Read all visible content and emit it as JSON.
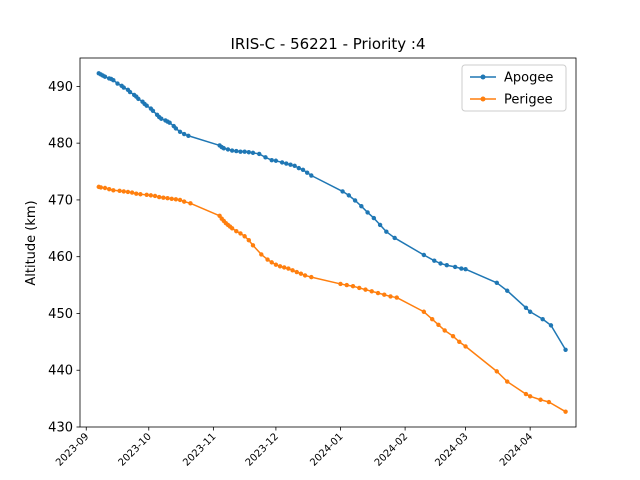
{
  "chart_data": {
    "type": "line",
    "title": "IRIS-C - 56221 - Priority :4",
    "xlabel": "",
    "ylabel": "Altitude (km)",
    "xlim": [
      "2023-08-29",
      "2024-04-23"
    ],
    "ylim": [
      430,
      495
    ],
    "y_ticks": [
      430,
      440,
      450,
      460,
      470,
      480,
      490
    ],
    "x_ticks": [
      "2023-09-01",
      "2023-10-01",
      "2023-11-01",
      "2023-12-01",
      "2024-01-01",
      "2024-02-01",
      "2024-03-01",
      "2024-04-01"
    ],
    "x_tick_labels": [
      "2023-09",
      "2023-10",
      "2023-11",
      "2023-12",
      "2024-01",
      "2024-02",
      "2024-03",
      "2024-04"
    ],
    "grid": false,
    "legend_position": "top-right",
    "series": [
      {
        "name": "Apogee",
        "color": "#1f77b4",
        "marker": "circle",
        "points": [
          [
            "2023-09-07",
            492.3
          ],
          [
            "2023-09-08",
            492.1
          ],
          [
            "2023-09-09",
            491.9
          ],
          [
            "2023-09-10",
            491.7
          ],
          [
            "2023-09-12",
            491.4
          ],
          [
            "2023-09-13",
            491.3
          ],
          [
            "2023-09-14",
            491.1
          ],
          [
            "2023-09-16",
            490.5
          ],
          [
            "2023-09-18",
            490.1
          ],
          [
            "2023-09-19",
            489.8
          ],
          [
            "2023-09-21",
            489.4
          ],
          [
            "2023-09-22",
            489.0
          ],
          [
            "2023-09-24",
            488.5
          ],
          [
            "2023-09-25",
            488.2
          ],
          [
            "2023-09-26",
            487.8
          ],
          [
            "2023-09-28",
            487.3
          ],
          [
            "2023-09-29",
            486.9
          ],
          [
            "2023-09-30",
            486.6
          ],
          [
            "2023-10-02",
            486.1
          ],
          [
            "2023-10-03",
            485.7
          ],
          [
            "2023-10-05",
            485.0
          ],
          [
            "2023-10-06",
            484.6
          ],
          [
            "2023-10-07",
            484.3
          ],
          [
            "2023-10-09",
            484.0
          ],
          [
            "2023-10-10",
            483.8
          ],
          [
            "2023-10-11",
            483.6
          ],
          [
            "2023-10-13",
            483.0
          ],
          [
            "2023-10-14",
            482.6
          ],
          [
            "2023-10-16",
            482.0
          ],
          [
            "2023-10-18",
            481.6
          ],
          [
            "2023-10-20",
            481.3
          ],
          [
            "2023-11-04",
            479.6
          ],
          [
            "2023-11-05",
            479.3
          ],
          [
            "2023-11-06",
            479.1
          ],
          [
            "2023-11-08",
            478.9
          ],
          [
            "2023-11-10",
            478.7
          ],
          [
            "2023-11-12",
            478.6
          ],
          [
            "2023-11-14",
            478.5
          ],
          [
            "2023-11-16",
            478.5
          ],
          [
            "2023-11-18",
            478.4
          ],
          [
            "2023-11-20",
            478.3
          ],
          [
            "2023-11-23",
            478.1
          ],
          [
            "2023-11-26",
            477.5
          ],
          [
            "2023-11-29",
            477.0
          ],
          [
            "2023-12-01",
            476.9
          ],
          [
            "2023-12-04",
            476.6
          ],
          [
            "2023-12-06",
            476.4
          ],
          [
            "2023-12-08",
            476.2
          ],
          [
            "2023-12-10",
            476.0
          ],
          [
            "2023-12-12",
            475.6
          ],
          [
            "2023-12-14",
            475.3
          ],
          [
            "2023-12-16",
            474.8
          ],
          [
            "2023-12-18",
            474.3
          ],
          [
            "2024-01-02",
            471.5
          ],
          [
            "2024-01-05",
            470.8
          ],
          [
            "2024-01-08",
            469.9
          ],
          [
            "2024-01-11",
            468.9
          ],
          [
            "2024-01-14",
            467.8
          ],
          [
            "2024-01-17",
            466.8
          ],
          [
            "2024-01-20",
            465.6
          ],
          [
            "2024-01-23",
            464.4
          ],
          [
            "2024-01-27",
            463.3
          ],
          [
            "2024-02-10",
            460.3
          ],
          [
            "2024-02-15",
            459.3
          ],
          [
            "2024-02-18",
            458.8
          ],
          [
            "2024-02-21",
            458.5
          ],
          [
            "2024-02-25",
            458.2
          ],
          [
            "2024-02-28",
            457.9
          ],
          [
            "2024-03-01",
            457.8
          ],
          [
            "2024-03-16",
            455.4
          ],
          [
            "2024-03-21",
            454.0
          ],
          [
            "2024-03-30",
            451.0
          ],
          [
            "2024-04-01",
            450.3
          ],
          [
            "2024-04-07",
            449.0
          ],
          [
            "2024-04-11",
            447.9
          ],
          [
            "2024-04-18",
            443.6
          ]
        ]
      },
      {
        "name": "Perigee",
        "color": "#ff7f0e",
        "marker": "circle",
        "points": [
          [
            "2023-09-07",
            472.3
          ],
          [
            "2023-09-08",
            472.2
          ],
          [
            "2023-09-10",
            472.1
          ],
          [
            "2023-09-12",
            471.9
          ],
          [
            "2023-09-14",
            471.7
          ],
          [
            "2023-09-17",
            471.6
          ],
          [
            "2023-09-19",
            471.5
          ],
          [
            "2023-09-21",
            471.4
          ],
          [
            "2023-09-23",
            471.3
          ],
          [
            "2023-09-25",
            471.1
          ],
          [
            "2023-09-27",
            471.0
          ],
          [
            "2023-09-30",
            470.9
          ],
          [
            "2023-10-02",
            470.8
          ],
          [
            "2023-10-04",
            470.7
          ],
          [
            "2023-10-06",
            470.5
          ],
          [
            "2023-10-08",
            470.4
          ],
          [
            "2023-10-10",
            470.3
          ],
          [
            "2023-10-12",
            470.2
          ],
          [
            "2023-10-14",
            470.1
          ],
          [
            "2023-10-16",
            470.0
          ],
          [
            "2023-10-18",
            469.7
          ],
          [
            "2023-10-21",
            469.4
          ],
          [
            "2023-11-04",
            467.2
          ],
          [
            "2023-11-05",
            466.7
          ],
          [
            "2023-11-06",
            466.3
          ],
          [
            "2023-11-07",
            465.9
          ],
          [
            "2023-11-08",
            465.6
          ],
          [
            "2023-11-09",
            465.3
          ],
          [
            "2023-11-10",
            465.0
          ],
          [
            "2023-11-12",
            464.5
          ],
          [
            "2023-11-14",
            464.1
          ],
          [
            "2023-11-16",
            463.6
          ],
          [
            "2023-11-18",
            462.9
          ],
          [
            "2023-11-20",
            462.0
          ],
          [
            "2023-11-24",
            460.4
          ],
          [
            "2023-11-27",
            459.5
          ],
          [
            "2023-11-29",
            459.0
          ],
          [
            "2023-12-01",
            458.6
          ],
          [
            "2023-12-03",
            458.3
          ],
          [
            "2023-12-05",
            458.1
          ],
          [
            "2023-12-07",
            457.9
          ],
          [
            "2023-12-09",
            457.6
          ],
          [
            "2023-12-11",
            457.3
          ],
          [
            "2023-12-13",
            457.0
          ],
          [
            "2023-12-15",
            456.7
          ],
          [
            "2023-12-18",
            456.4
          ],
          [
            "2024-01-01",
            455.2
          ],
          [
            "2024-01-04",
            455.0
          ],
          [
            "2024-01-07",
            454.8
          ],
          [
            "2024-01-10",
            454.5
          ],
          [
            "2024-01-13",
            454.2
          ],
          [
            "2024-01-16",
            453.9
          ],
          [
            "2024-01-19",
            453.6
          ],
          [
            "2024-01-22",
            453.3
          ],
          [
            "2024-01-25",
            453.0
          ],
          [
            "2024-01-28",
            452.8
          ],
          [
            "2024-02-10",
            450.3
          ],
          [
            "2024-02-14",
            449.0
          ],
          [
            "2024-02-17",
            448.0
          ],
          [
            "2024-02-20",
            447.0
          ],
          [
            "2024-02-24",
            446.0
          ],
          [
            "2024-02-27",
            445.0
          ],
          [
            "2024-03-01",
            444.2
          ],
          [
            "2024-03-16",
            439.8
          ],
          [
            "2024-03-21",
            438.0
          ],
          [
            "2024-03-30",
            435.8
          ],
          [
            "2024-04-01",
            435.4
          ],
          [
            "2024-04-06",
            434.8
          ],
          [
            "2024-04-10",
            434.4
          ],
          [
            "2024-04-18",
            432.7
          ]
        ]
      }
    ]
  }
}
